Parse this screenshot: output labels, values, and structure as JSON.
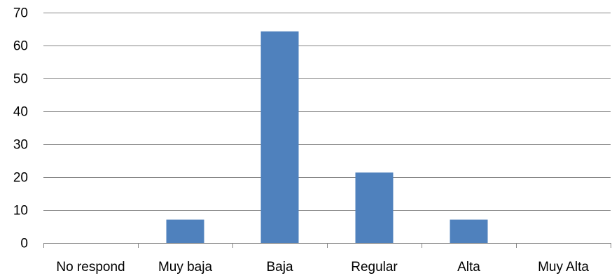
{
  "chart_data": {
    "type": "bar",
    "categories": [
      "No respond",
      "Muy baja",
      "Baja",
      "Regular",
      "Alta",
      "Muy Alta"
    ],
    "values": [
      0,
      7.1,
      64.3,
      21.4,
      7.1,
      0
    ],
    "ylim": [
      0,
      70
    ],
    "yticks": [
      0,
      10,
      20,
      30,
      40,
      50,
      60,
      70
    ],
    "grid": true,
    "legend": "none",
    "colors": {
      "bar": "#4F81BD",
      "grid": "#868686",
      "text": "#000000"
    }
  }
}
